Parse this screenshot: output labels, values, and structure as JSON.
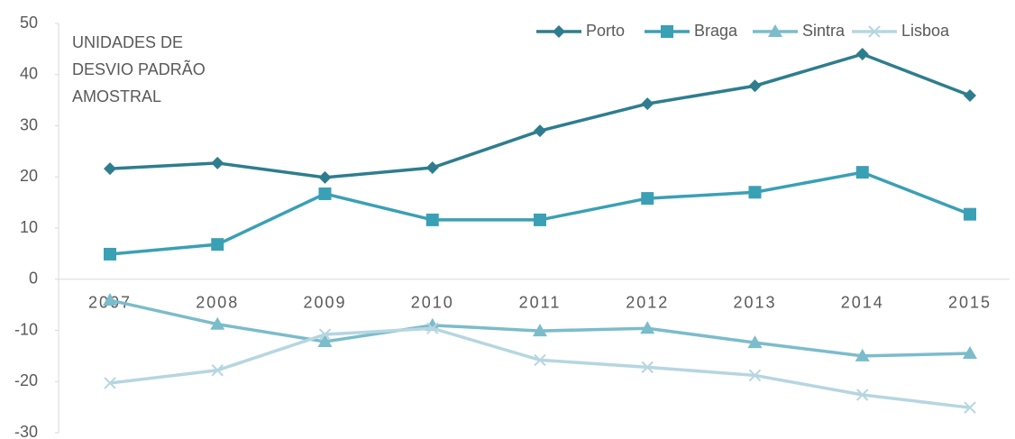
{
  "chart_data": {
    "type": "line",
    "annotation": [
      "UNIDADES DE",
      "DESVIO PADRÃO",
      "AMOSTRAL"
    ],
    "categories": [
      "2007",
      "2008",
      "2009",
      "2010",
      "2011",
      "2012",
      "2013",
      "2014",
      "2015"
    ],
    "series": [
      {
        "name": "Porto",
        "color": "#2e7d8f",
        "marker": "diamond",
        "values": [
          21.6,
          22.7,
          19.9,
          21.8,
          29.0,
          34.3,
          37.8,
          44.0,
          35.9
        ]
      },
      {
        "name": "Braga",
        "color": "#3aa0b5",
        "marker": "square",
        "values": [
          4.9,
          6.8,
          16.7,
          11.6,
          11.6,
          15.8,
          17.0,
          20.9,
          12.7
        ]
      },
      {
        "name": "Sintra",
        "color": "#7bbccb",
        "marker": "triangle",
        "values": [
          -4.1,
          -8.8,
          -12.2,
          -9.0,
          -10.1,
          -9.6,
          -12.4,
          -15.0,
          -14.5
        ]
      },
      {
        "name": "Lisboa",
        "color": "#b6d6e0",
        "marker": "x",
        "values": [
          -20.3,
          -17.8,
          -10.8,
          -9.6,
          -15.8,
          -17.2,
          -18.8,
          -22.6,
          -25.1
        ]
      }
    ],
    "ylim": [
      -30,
      50
    ],
    "yticks": [
      -30,
      -20,
      -10,
      0,
      10,
      20,
      30,
      40,
      50
    ],
    "legend": "top-right",
    "grid": false
  }
}
